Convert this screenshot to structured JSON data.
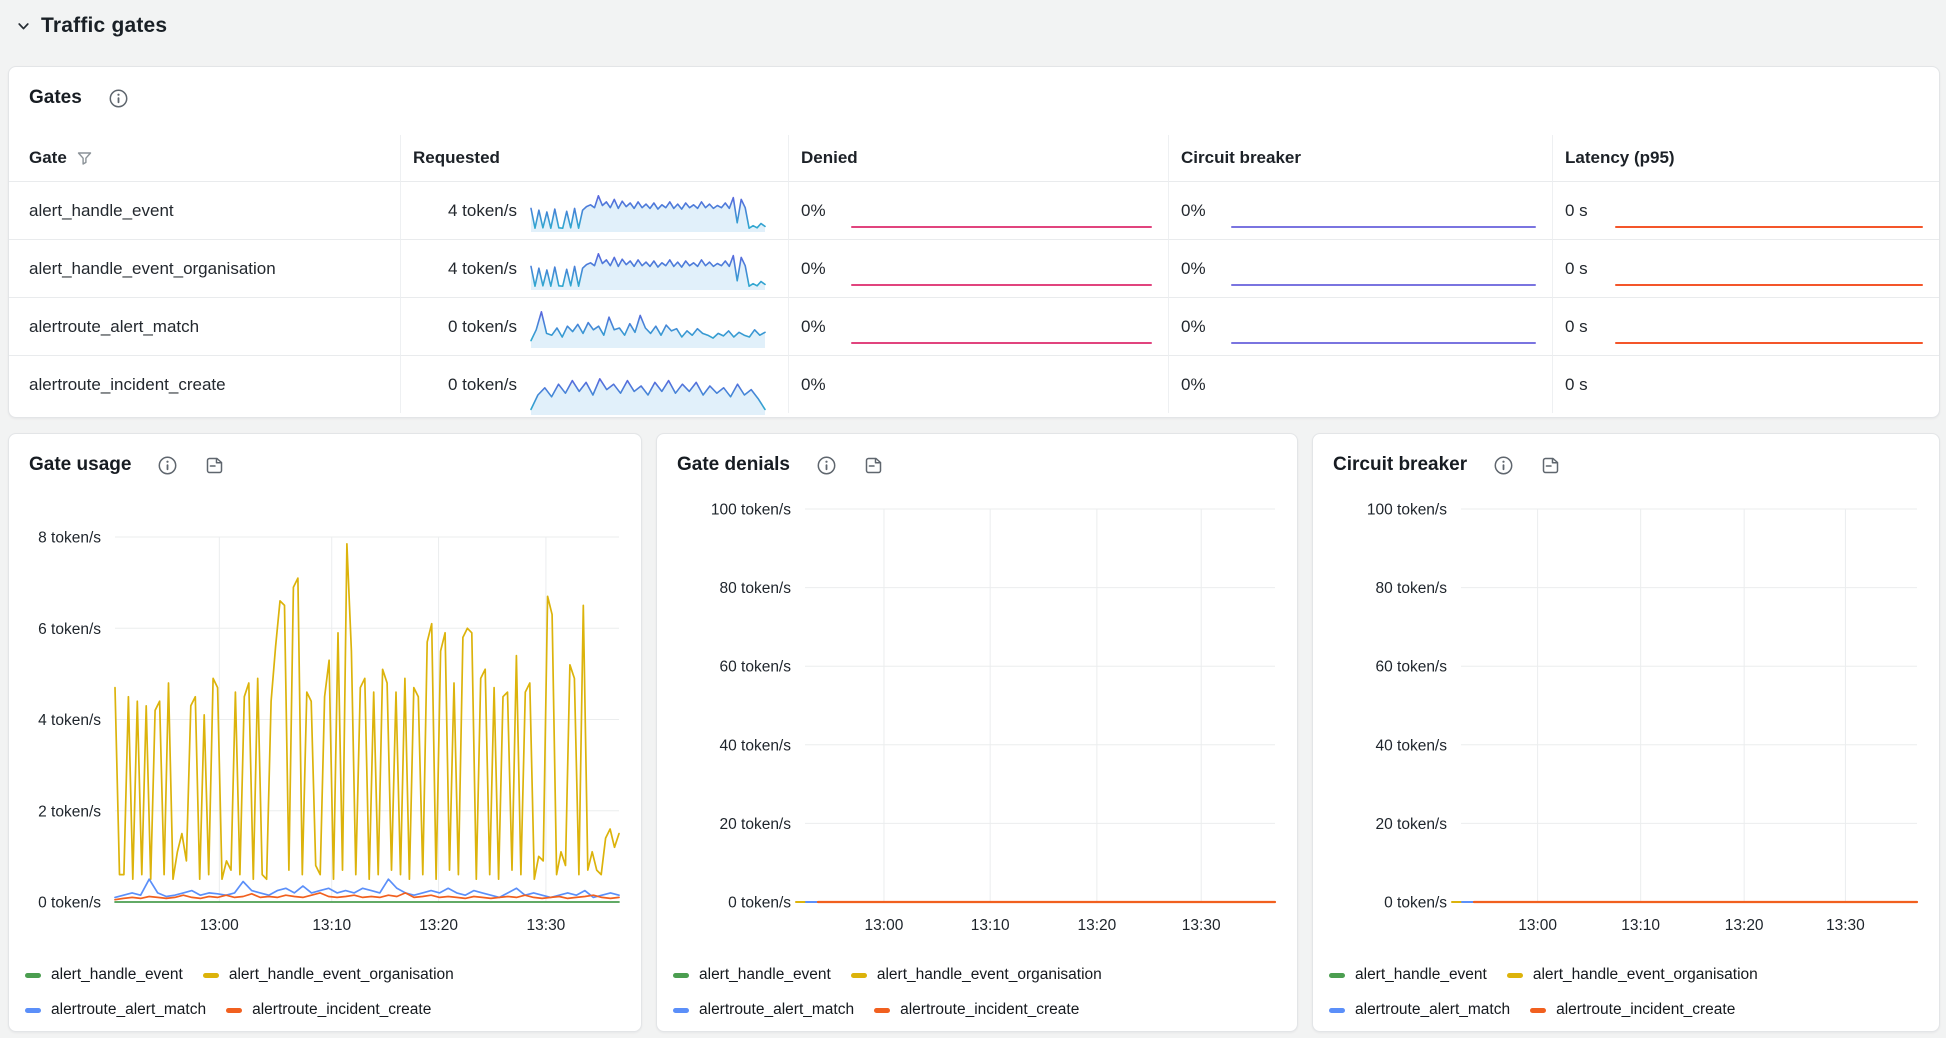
{
  "section": {
    "title": "Traffic gates"
  },
  "colors": {
    "denied_line": "#e1447e",
    "breaker_line": "#7a74e0",
    "latency_line": "#f4562a",
    "spark_stroke_top": "#5b66de",
    "spark_stroke_bottom": "#2ea9cf",
    "spark_fill": "#dcedf9",
    "grid": "#ebedee",
    "axis_text": "#1e242b"
  },
  "gates_panel": {
    "title": "Gates",
    "columns": [
      "Gate",
      "Requested",
      "Denied",
      "Circuit breaker",
      "Latency (p95)"
    ],
    "rows": [
      {
        "gate": "alert_handle_event",
        "requested": "4 token/s",
        "denied": "0%",
        "breaker": "0%",
        "latency": "0 s",
        "spark": "high"
      },
      {
        "gate": "alert_handle_event_organisation",
        "requested": "4 token/s",
        "denied": "0%",
        "breaker": "0%",
        "latency": "0 s",
        "spark": "high"
      },
      {
        "gate": "alertroute_alert_match",
        "requested": "0 token/s",
        "denied": "0%",
        "breaker": "0%",
        "latency": "0 s",
        "spark": "mid"
      },
      {
        "gate": "alertroute_incident_create",
        "requested": "0 token/s",
        "denied": "0%",
        "breaker": "0%",
        "latency": "0 s",
        "spark": "tall"
      }
    ],
    "sparks": {
      "high": [
        0.6,
        0.05,
        0.55,
        0.06,
        0.5,
        0.05,
        0.58,
        0.06,
        0.05,
        0.52,
        0.06,
        0.6,
        0.05,
        0.55,
        0.65,
        0.7,
        0.62,
        0.95,
        0.68,
        0.78,
        0.62,
        0.85,
        0.6,
        0.8,
        0.65,
        0.75,
        0.6,
        0.78,
        0.62,
        0.72,
        0.6,
        0.75,
        0.58,
        0.7,
        0.62,
        0.78,
        0.6,
        0.72,
        0.58,
        0.75,
        0.62,
        0.7,
        0.6,
        0.78,
        0.62,
        0.72,
        0.6,
        0.68,
        0.62,
        0.75,
        0.6,
        0.9,
        0.2,
        0.85,
        0.62,
        0.05,
        0.12,
        0.06,
        0.18,
        0.1
      ],
      "mid": [
        0.15,
        0.45,
        0.95,
        0.35,
        0.3,
        0.5,
        0.25,
        0.55,
        0.4,
        0.6,
        0.35,
        0.65,
        0.45,
        0.55,
        0.3,
        0.8,
        0.45,
        0.5,
        0.3,
        0.62,
        0.38,
        0.85,
        0.5,
        0.35,
        0.55,
        0.3,
        0.58,
        0.42,
        0.48,
        0.25,
        0.42,
        0.3,
        0.48,
        0.35,
        0.3,
        0.22,
        0.35,
        0.28,
        0.42,
        0.25,
        0.38,
        0.3,
        0.25,
        0.45,
        0.3,
        0.38
      ],
      "tall": [
        0.1,
        0.5,
        0.7,
        0.45,
        0.8,
        0.55,
        0.9,
        0.6,
        0.85,
        0.5,
        0.95,
        0.65,
        0.8,
        0.55,
        0.9,
        0.6,
        0.75,
        0.5,
        0.85,
        0.6,
        0.9,
        0.55,
        0.8,
        0.6,
        0.85,
        0.5,
        0.75,
        0.55,
        0.7,
        0.45,
        0.8,
        0.5,
        0.65,
        0.4,
        0.1
      ]
    }
  },
  "chart_data": [
    {
      "type": "line",
      "title": "Gate usage",
      "ylabel": "token/s",
      "ylim": [
        0,
        8
      ],
      "y_labels": [
        "8 token/s",
        "6 token/s",
        "4 token/s",
        "2 token/s",
        "0 token/s"
      ],
      "x_labels": [
        "13:00",
        "13:10",
        "13:20",
        "13:30"
      ],
      "grid": true,
      "legend_position": "bottom",
      "flat_zero": false,
      "series": [
        {
          "name": "alert_handle_event",
          "color": "#4b9e50",
          "values": [
            0,
            0
          ]
        },
        {
          "name": "alert_handle_event_organisation",
          "color": "#dcb30b",
          "values": [
            4.7,
            0.6,
            0.6,
            4.5,
            0.5,
            4.4,
            0.6,
            4.3,
            0.5,
            4.2,
            4.4,
            0.6,
            4.8,
            0.5,
            1.1,
            1.5,
            0.9,
            4.3,
            4.5,
            0.5,
            4.1,
            0.6,
            4.9,
            4.7,
            0.5,
            0.9,
            0.7,
            4.6,
            0.6,
            4.5,
            4.8,
            0.5,
            4.9,
            0.6,
            0.5,
            4.4,
            5.6,
            6.6,
            6.5,
            0.7,
            6.9,
            7.1,
            0.6,
            4.6,
            4.4,
            0.8,
            0.6,
            4.5,
            5.3,
            0.5,
            5.9,
            0.7,
            7.85,
            5.5,
            0.6,
            4.7,
            4.9,
            0.5,
            4.6,
            0.6,
            5.1,
            4.8,
            0.7,
            4.6,
            0.6,
            4.9,
            0.5,
            4.7,
            4.5,
            0.6,
            5.7,
            6.1,
            0.5,
            5.5,
            5.9,
            0.7,
            4.8,
            0.6,
            5.8,
            6.0,
            5.9,
            0.5,
            4.9,
            5.1,
            0.6,
            4.7,
            0.5,
            4.5,
            4.6,
            0.7,
            5.4,
            0.6,
            4.6,
            4.8,
            0.5,
            1.0,
            0.9,
            6.7,
            6.3,
            0.6,
            1.1,
            0.8,
            5.2,
            4.9,
            0.6,
            6.5,
            0.7,
            1.1,
            0.7,
            0.6,
            1.4,
            1.6,
            1.2,
            1.5
          ]
        },
        {
          "name": "alertroute_alert_match",
          "color": "#5b8ff9",
          "values": [
            0.1,
            0.15,
            0.2,
            0.15,
            0.5,
            0.2,
            0.12,
            0.15,
            0.2,
            0.25,
            0.15,
            0.2,
            0.18,
            0.15,
            0.2,
            0.45,
            0.25,
            0.2,
            0.15,
            0.25,
            0.3,
            0.2,
            0.35,
            0.2,
            0.25,
            0.3,
            0.2,
            0.25,
            0.2,
            0.3,
            0.25,
            0.2,
            0.5,
            0.3,
            0.2,
            0.15,
            0.2,
            0.25,
            0.2,
            0.3,
            0.2,
            0.15,
            0.25,
            0.2,
            0.15,
            0.1,
            0.2,
            0.3,
            0.15,
            0.2,
            0.15,
            0.1,
            0.15,
            0.2,
            0.15,
            0.25,
            0.1,
            0.15,
            0.2,
            0.15
          ]
        },
        {
          "name": "alertroute_incident_create",
          "color": "#f1601f",
          "values": [
            0.05,
            0.08,
            0.1,
            0.08,
            0.12,
            0.1,
            0.08,
            0.1,
            0.15,
            0.1,
            0.08,
            0.12,
            0.1,
            0.15,
            0.1,
            0.12,
            0.18,
            0.1,
            0.12,
            0.1,
            0.15,
            0.12,
            0.1,
            0.15,
            0.2,
            0.12,
            0.1,
            0.12,
            0.15,
            0.1,
            0.12,
            0.1,
            0.15,
            0.12,
            0.2,
            0.1,
            0.12,
            0.15,
            0.1,
            0.12,
            0.1,
            0.08,
            0.12,
            0.1,
            0.08,
            0.1,
            0.12,
            0.1,
            0.15,
            0.1,
            0.08,
            0.1,
            0.12,
            0.08,
            0.1,
            0.12,
            0.15,
            0.1,
            0.08,
            0.1
          ]
        }
      ]
    },
    {
      "type": "line",
      "title": "Gate denials",
      "ylabel": "token/s",
      "ylim": [
        0,
        100
      ],
      "y_labels": [
        "100 token/s",
        "80 token/s",
        "60 token/s",
        "40 token/s",
        "20 token/s",
        "0 token/s"
      ],
      "x_labels": [
        "13:00",
        "13:10",
        "13:20",
        "13:30"
      ],
      "grid": true,
      "legend_position": "bottom",
      "flat_zero": true,
      "series": [
        {
          "name": "alert_handle_event",
          "color": "#4b9e50",
          "values": [
            0,
            0
          ]
        },
        {
          "name": "alert_handle_event_organisation",
          "color": "#dcb30b",
          "values": [
            0,
            0
          ]
        },
        {
          "name": "alertroute_alert_match",
          "color": "#5b8ff9",
          "values": [
            0,
            0
          ]
        },
        {
          "name": "alertroute_incident_create",
          "color": "#f1601f",
          "values": [
            0,
            0
          ]
        }
      ]
    },
    {
      "type": "line",
      "title": "Circuit breaker",
      "ylabel": "token/s",
      "ylim": [
        0,
        100
      ],
      "y_labels": [
        "100 token/s",
        "80 token/s",
        "60 token/s",
        "40 token/s",
        "20 token/s",
        "0 token/s"
      ],
      "x_labels": [
        "13:00",
        "13:10",
        "13:20",
        "13:30"
      ],
      "grid": true,
      "legend_position": "bottom",
      "flat_zero": true,
      "series": [
        {
          "name": "alert_handle_event",
          "color": "#4b9e50",
          "values": [
            0,
            0
          ]
        },
        {
          "name": "alert_handle_event_organisation",
          "color": "#dcb30b",
          "values": [
            0,
            0
          ]
        },
        {
          "name": "alertroute_alert_match",
          "color": "#5b8ff9",
          "values": [
            0,
            0
          ]
        },
        {
          "name": "alertroute_incident_create",
          "color": "#f1601f",
          "values": [
            0,
            0
          ]
        }
      ]
    }
  ]
}
